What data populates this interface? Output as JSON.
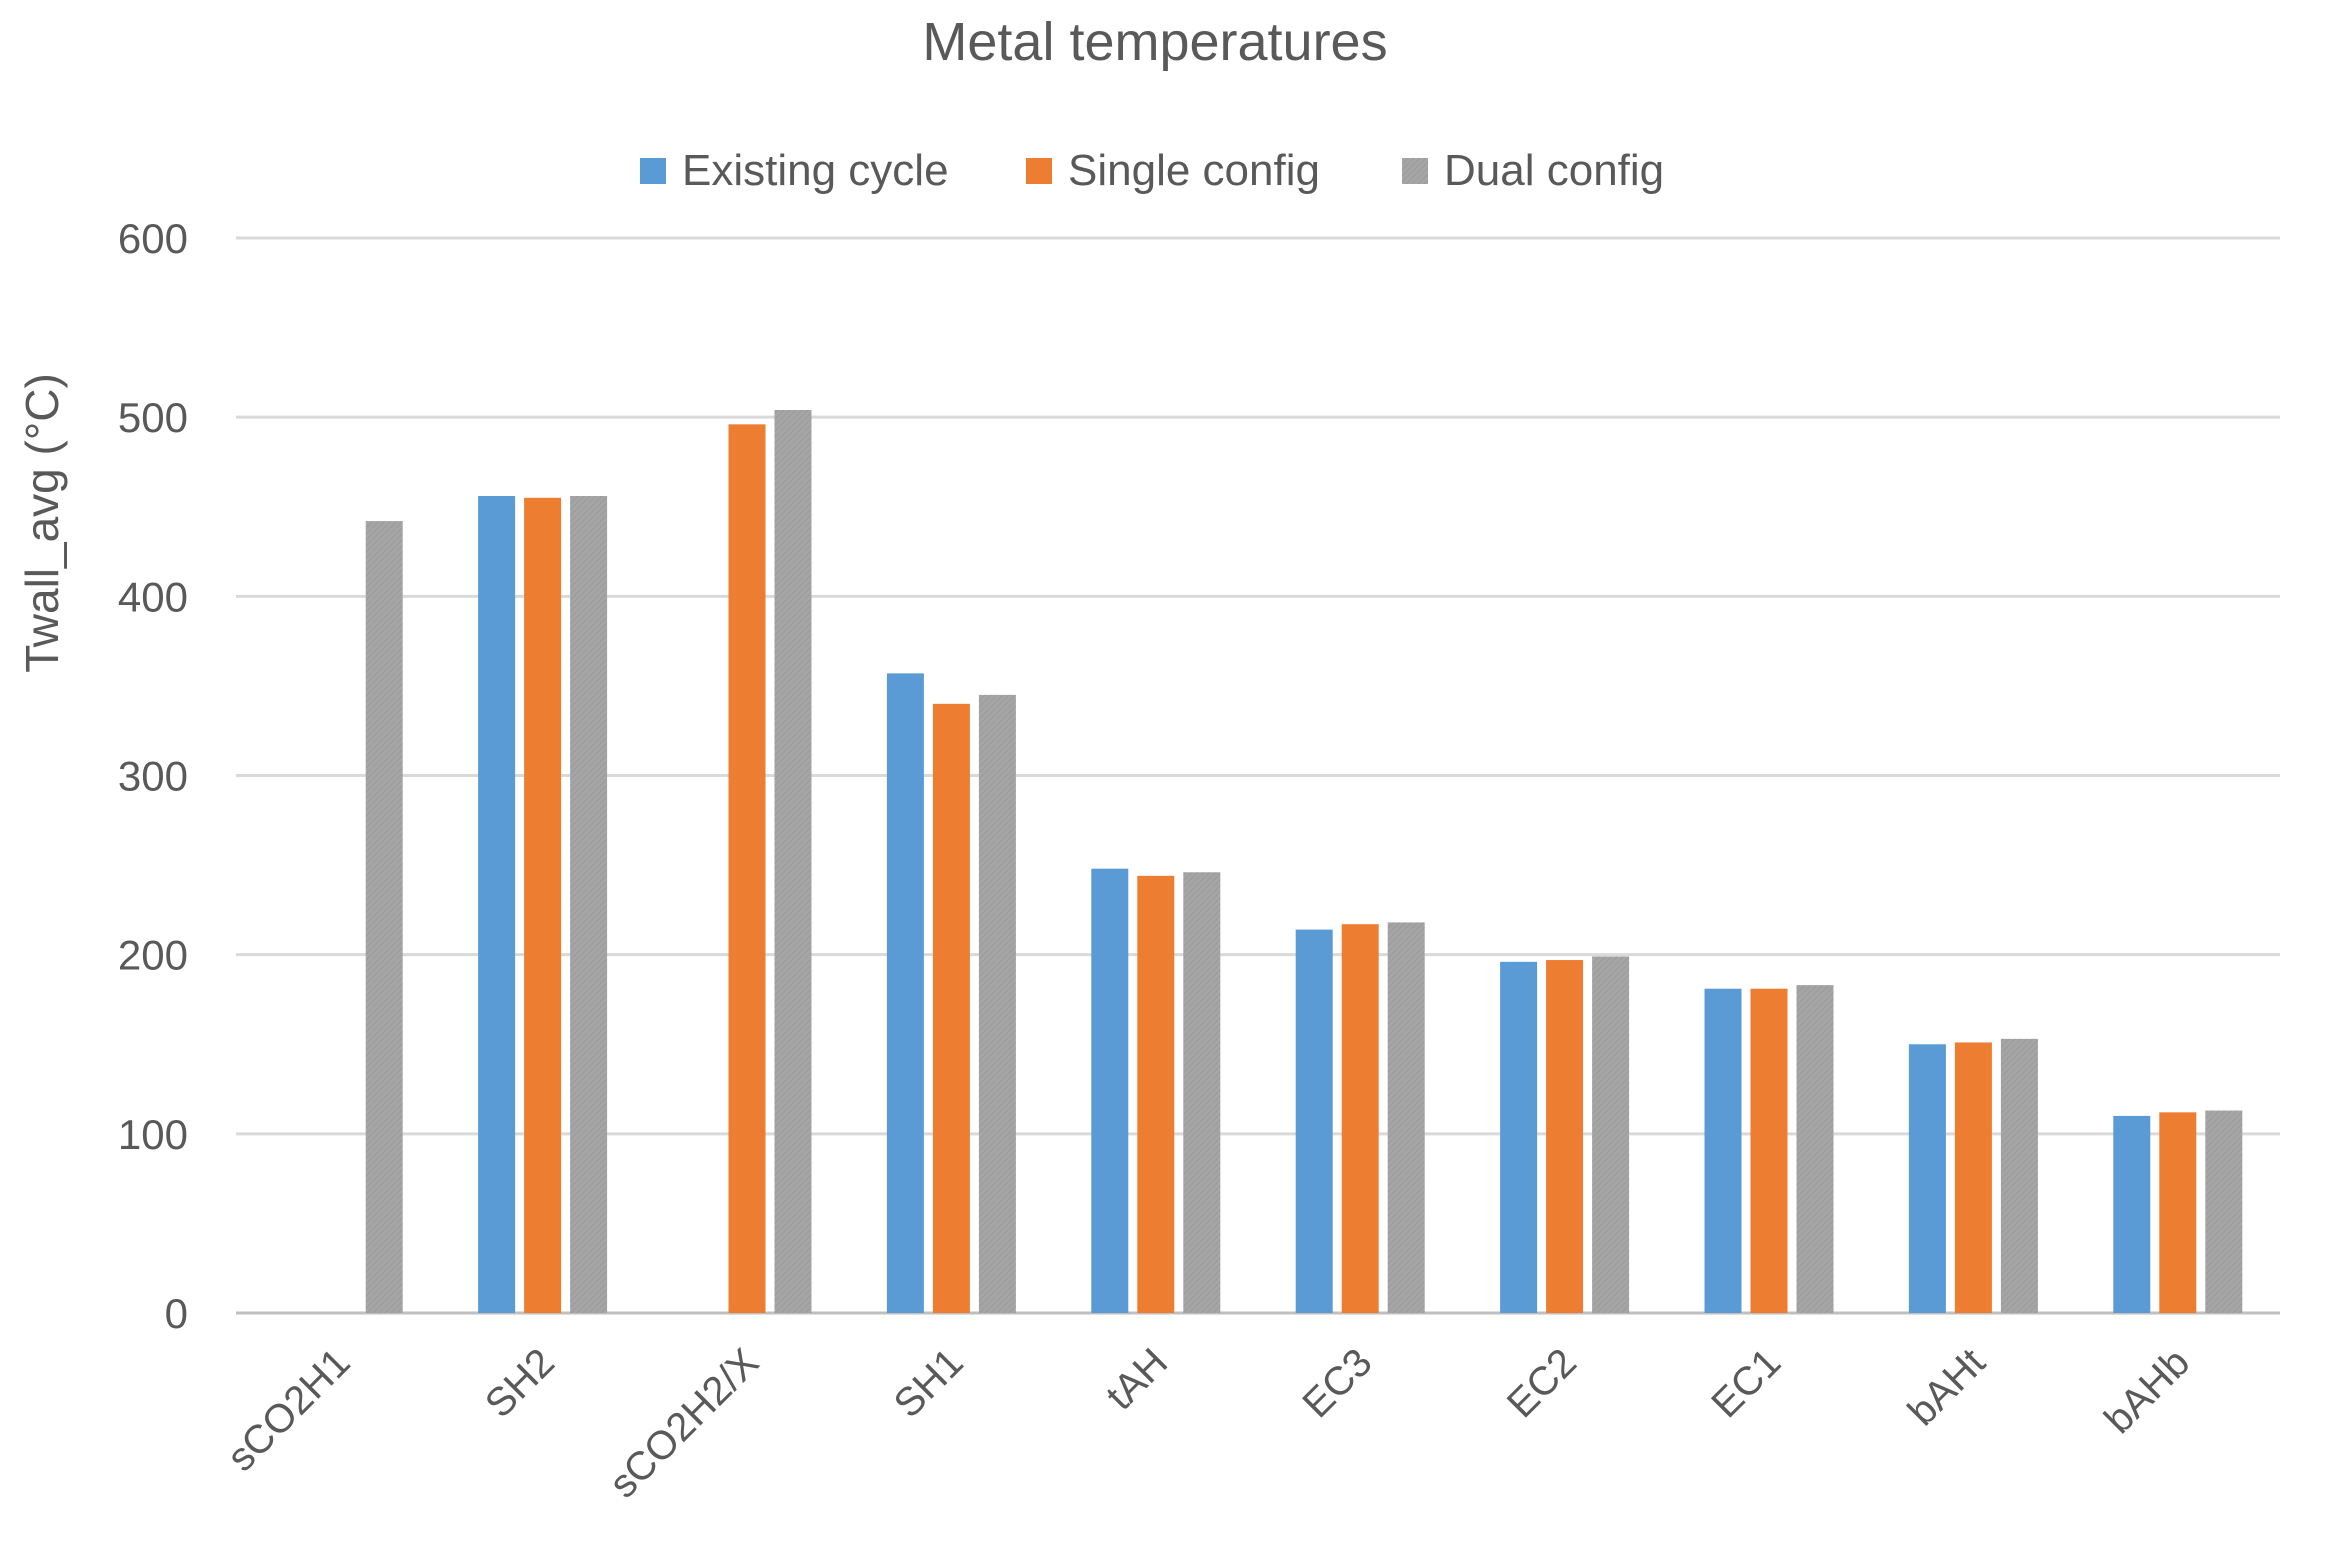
{
  "chart_data": {
    "type": "bar",
    "title": "Metal temperatures",
    "xlabel": "",
    "ylabel": "Twall_avg (°C)",
    "ylim": [
      0,
      600
    ],
    "yticks": [
      0,
      100,
      200,
      300,
      400,
      500,
      600
    ],
    "grid": true,
    "legend_position": "top-center",
    "categories": [
      "sCO2H1",
      "SH2",
      "sCO2H2/X",
      "SH1",
      "tAH",
      "EC3",
      "EC2",
      "EC1",
      "bAHt",
      "bAHb"
    ],
    "series": [
      {
        "name": "Existing cycle",
        "color": "#5B9BD5",
        "values": [
          null,
          456,
          null,
          357,
          248,
          214,
          196,
          181,
          150,
          110
        ]
      },
      {
        "name": "Single config",
        "color": "#ED7D31",
        "values": [
          null,
          455,
          496,
          340,
          244,
          217,
          197,
          181,
          151,
          112
        ]
      },
      {
        "name": "Dual config",
        "color": "#A5A5A5",
        "values": [
          442,
          456,
          504,
          345,
          246,
          218,
          199,
          183,
          153,
          113
        ]
      }
    ]
  }
}
